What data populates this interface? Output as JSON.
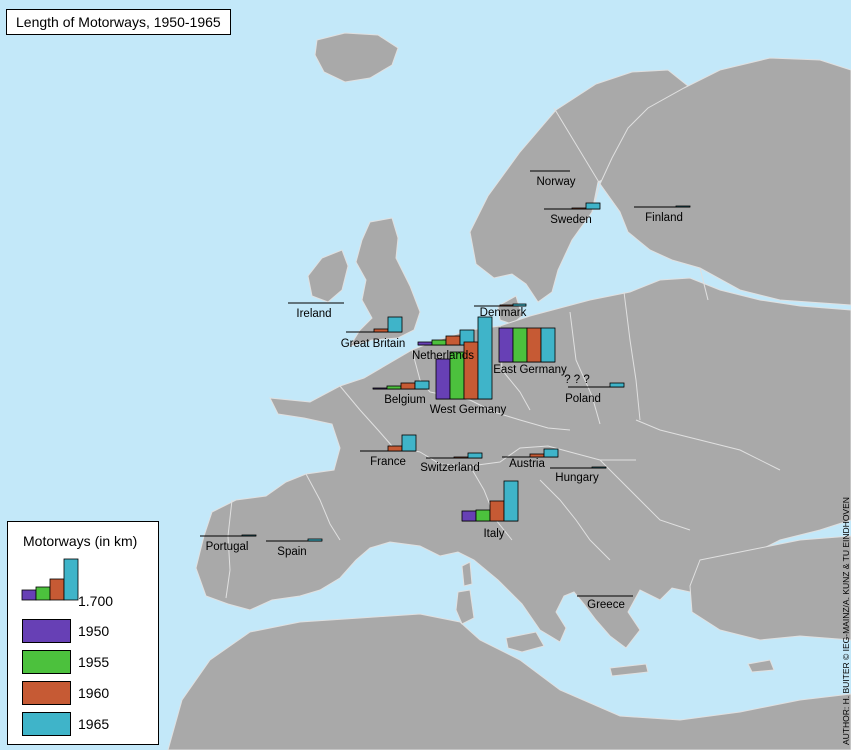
{
  "title": "Length of Motorways, 1950-1965",
  "credit": "AUTHOR: H. BUITER © IEG-MAINZ/A. KUNZ & TU EINDHOVEN",
  "colors": {
    "sea": "#c3e8f9",
    "land": "#a9a9a9",
    "border": "#e0e0e0"
  },
  "legend": {
    "title": "Motorways (in km)",
    "scale_label": "1.700",
    "scale_km": 1700,
    "items": [
      {
        "year": "1950",
        "color": "#6740b5"
      },
      {
        "year": "1955",
        "color": "#4cc13d"
      },
      {
        "year": "1960",
        "color": "#c65a34"
      },
      {
        "year": "1965",
        "color": "#3fb4c9"
      }
    ]
  },
  "countries": [
    {
      "name": "Norway"
    },
    {
      "name": "Sweden"
    },
    {
      "name": "Finland"
    },
    {
      "name": "Ireland"
    },
    {
      "name": "Denmark"
    },
    {
      "name": "Great Britain"
    },
    {
      "name": "Netherlands"
    },
    {
      "name": "East Germany"
    },
    {
      "name": "Belgium"
    },
    {
      "name": "West Germany"
    },
    {
      "name": "Poland",
      "note": "? ? ?"
    },
    {
      "name": "France"
    },
    {
      "name": "Switzerland"
    },
    {
      "name": "Austria"
    },
    {
      "name": "Hungary"
    },
    {
      "name": "Italy"
    },
    {
      "name": "Portugal"
    },
    {
      "name": "Spain"
    },
    {
      "name": "Greece"
    }
  ]
}
